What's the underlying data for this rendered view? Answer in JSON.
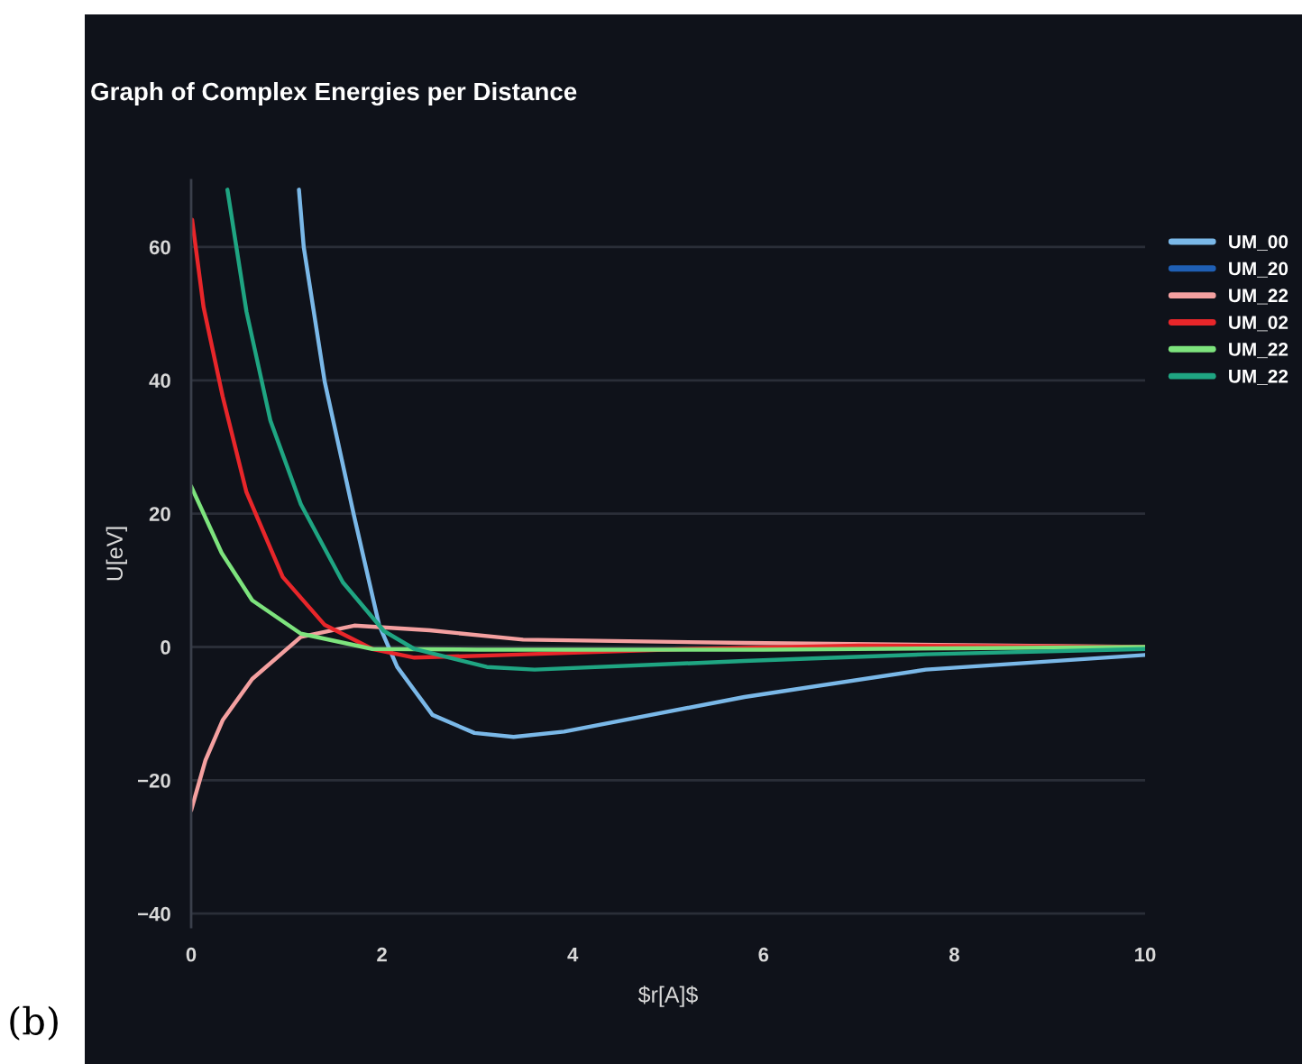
{
  "chart_data": {
    "type": "line",
    "title": "Graph of Complex Energies per Distance",
    "xlabel": "$r[A]$",
    "ylabel": "U[eV]",
    "annotations": [
      "(b)"
    ],
    "xlim": [
      0,
      10
    ],
    "ylim": [
      -42,
      70
    ],
    "xticks": [
      0,
      2,
      4,
      6,
      8,
      10
    ],
    "yticks": [
      -40,
      -20,
      0,
      20,
      40,
      60
    ],
    "grid": "y",
    "legend": "top right",
    "marker": "none",
    "line_style": "solid",
    "series": [
      {
        "name": "UM_00",
        "color": "#7ab8e8",
        "x": [
          1.13,
          1.18,
          1.4,
          1.71,
          1.97,
          2.16,
          2.53,
          2.97,
          3.38,
          3.91,
          5.8,
          7.7,
          10
        ],
        "values": [
          68.6,
          60,
          39.8,
          19.5,
          3.3,
          -3.0,
          -10.2,
          -12.9,
          -13.5,
          -12.7,
          -7.5,
          -3.4,
          -1.2
        ]
      },
      {
        "name": "UM_20",
        "color": "#1f5fb4"
      },
      {
        "name": "UM_22",
        "color": "#f4a0a0",
        "x": [
          0,
          0.15,
          0.33,
          0.64,
          1.15,
          1.71,
          2.5,
          3.48,
          5.8,
          10
        ],
        "values": [
          -24.5,
          -17,
          -11,
          -4.8,
          1.5,
          3.2,
          2.5,
          1.1,
          0.6,
          0
        ]
      },
      {
        "name": "UM_02",
        "color": "#e8262a",
        "x": [
          0.01,
          0.13,
          0.33,
          0.58,
          0.96,
          1.4,
          1.9,
          2.34,
          3.29,
          5.18,
          7.0,
          10
        ],
        "values": [
          64.1,
          51,
          37.6,
          23.2,
          10.5,
          3.3,
          -0.3,
          -1.6,
          -1.2,
          -0.3,
          0.2,
          0
        ]
      },
      {
        "name": "UM_22",
        "color": "#7de37d",
        "x": [
          0,
          0.32,
          0.64,
          1.15,
          1.9,
          3.0,
          6.0,
          10
        ],
        "values": [
          24.1,
          14.1,
          7,
          2,
          -0.3,
          -0.4,
          -0.4,
          0
        ]
      },
      {
        "name": "UM_22",
        "color": "#1fa582",
        "x": [
          0.38,
          0.58,
          0.83,
          1.15,
          1.59,
          2.02,
          2.34,
          3.1,
          3.6,
          5.8,
          7.7,
          10
        ],
        "values": [
          68.6,
          50.3,
          34,
          21.4,
          9.7,
          2.4,
          -0.3,
          -3,
          -3.4,
          -2.1,
          -1.1,
          -0.3
        ]
      }
    ]
  }
}
